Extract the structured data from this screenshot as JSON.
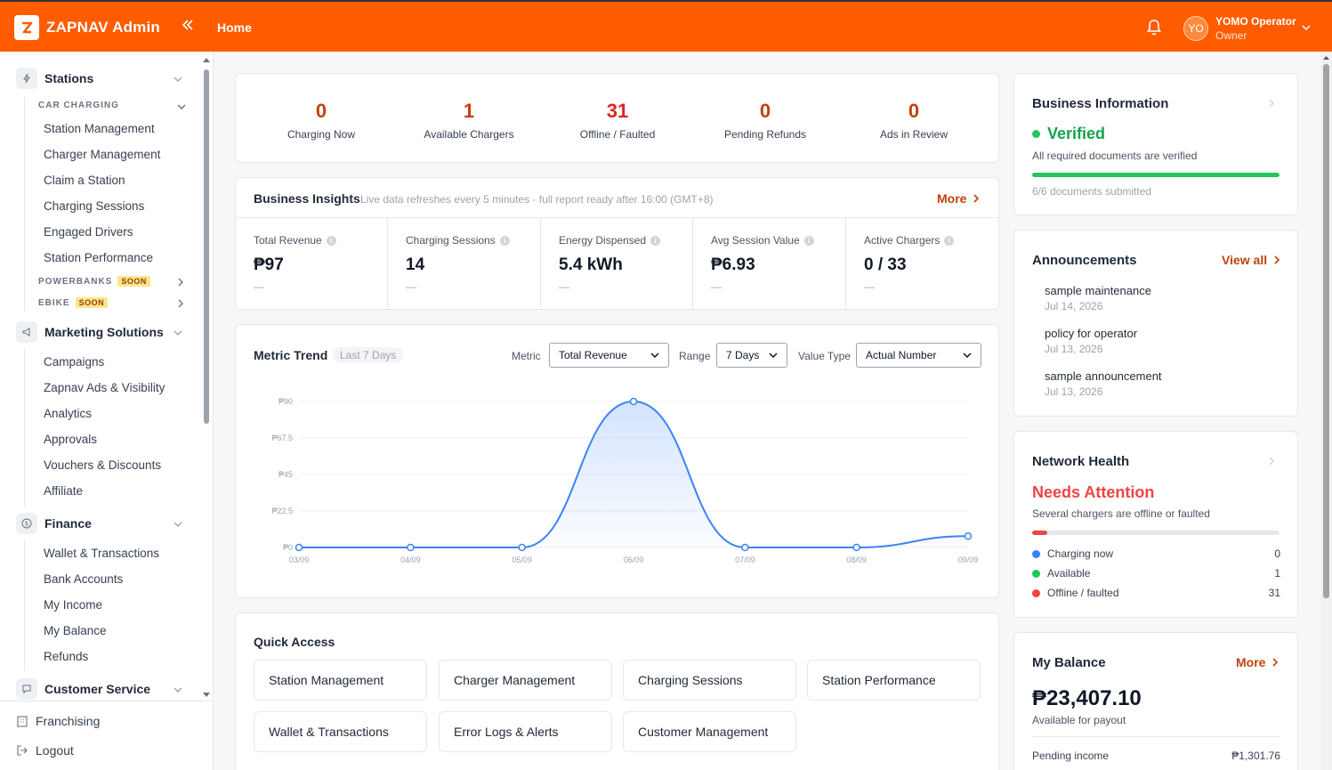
{
  "header": {
    "app_title": "ZAPNAV Admin",
    "breadcrumb": "Home",
    "user_initials": "YO",
    "user_name": "YOMO Operator",
    "user_role": "Owner"
  },
  "sidebar": {
    "stations_label": "Stations",
    "car_charging_label": "CAR CHARGING",
    "car_items": [
      "Station Management",
      "Charger Management",
      "Claim a Station",
      "Charging Sessions",
      "Engaged Drivers",
      "Station Performance"
    ],
    "powerbanks_label": "POWERBANKS",
    "ebike_label": "EBIKE",
    "soon_label": "SOON",
    "marketing_label": "Marketing Solutions",
    "marketing_items": [
      "Campaigns",
      "Zapnav Ads & Visibility",
      "Analytics",
      "Approvals",
      "Vouchers & Discounts",
      "Affiliate"
    ],
    "finance_label": "Finance",
    "finance_items": [
      "Wallet & Transactions",
      "Bank Accounts",
      "My Income",
      "My Balance",
      "Refunds"
    ],
    "customer_service_label": "Customer Service",
    "franchising_label": "Franchising",
    "logout_label": "Logout"
  },
  "stats": [
    {
      "value": "0",
      "label": "Charging Now"
    },
    {
      "value": "1",
      "label": "Available Chargers"
    },
    {
      "value": "31",
      "label": "Offline / Faulted"
    },
    {
      "value": "0",
      "label": "Pending Refunds"
    },
    {
      "value": "0",
      "label": "Ads in Review"
    }
  ],
  "insights": {
    "title": "Business Insights",
    "subtitle": "Live data refreshes every 5 minutes · full report ready after 16:00 (GMT+8)",
    "more": "More",
    "metrics": [
      {
        "label": "Total Revenue",
        "value": "₱97",
        "delta": "—"
      },
      {
        "label": "Charging Sessions",
        "value": "14",
        "delta": "—"
      },
      {
        "label": "Energy Dispensed",
        "value": "5.4 kWh",
        "delta": "—"
      },
      {
        "label": "Avg Session Value",
        "value": "₱6.93",
        "delta": "—"
      },
      {
        "label": "Active Chargers",
        "value": "0 / 33",
        "delta": "—"
      }
    ]
  },
  "trend": {
    "title": "Metric Trend",
    "pill": "Last 7 Days",
    "metric_label": "Metric",
    "metric_value": "Total Revenue",
    "range_label": "Range",
    "range_value": "7 Days",
    "value_type_label": "Value Type",
    "value_type_value": "Actual Number"
  },
  "chart_data": {
    "type": "line",
    "x": [
      "03/09",
      "04/09",
      "05/09",
      "06/09",
      "07/09",
      "08/09",
      "09/09"
    ],
    "values": [
      0,
      0,
      0,
      90,
      0,
      0,
      7
    ],
    "yticks": [
      "₱0",
      "₱22.5",
      "₱45",
      "₱67.5",
      "₱90"
    ],
    "ylim": [
      0,
      90
    ],
    "color": "#3b82f6"
  },
  "quick_access": {
    "title": "Quick Access",
    "items": [
      "Station Management",
      "Charger Management",
      "Charging Sessions",
      "Station Performance",
      "Wallet & Transactions",
      "Error Logs & Alerts",
      "Customer Management"
    ]
  },
  "business_info": {
    "title": "Business Information",
    "status": "Verified",
    "desc": "All required documents are verified",
    "progress": 1.0,
    "docs": "6/6 documents submitted"
  },
  "announcements": {
    "title": "Announcements",
    "view_all": "View all",
    "items": [
      {
        "title": "sample maintenance",
        "date": "Jul 14, 2026"
      },
      {
        "title": "policy for operator",
        "date": "Jul 13, 2026"
      },
      {
        "title": "sample announcement",
        "date": "Jul 13, 2026"
      }
    ]
  },
  "network": {
    "title": "Network Health",
    "status": "Needs Attention",
    "desc": "Several chargers are offline or faulted",
    "progress": 0.06,
    "rows": [
      {
        "label": "Charging now",
        "value": "0",
        "color": "#3b82f6"
      },
      {
        "label": "Available",
        "value": "1",
        "color": "#22c55e"
      },
      {
        "label": "Offline / faulted",
        "value": "31",
        "color": "#ef4444"
      }
    ]
  },
  "balance": {
    "title": "My Balance",
    "more": "More",
    "value": "₱23,407.10",
    "sub": "Available for payout",
    "pending_label": "Pending income",
    "pending_value": "₱1,301.76"
  },
  "colors": {
    "brand": "#ff5c00",
    "accent_text": "#c2410c",
    "verified": "#16a34a",
    "attention": "#ef4444"
  }
}
